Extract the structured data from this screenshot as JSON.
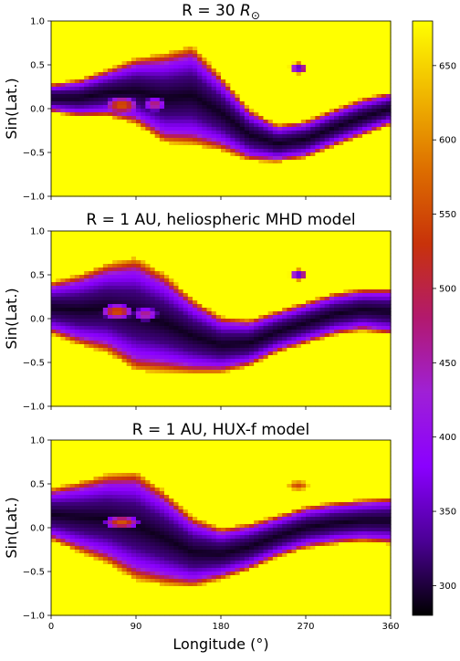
{
  "chart_data": {
    "type": "heatmap",
    "panels": [
      {
        "title_prefix": "R = 30 ",
        "title_symbol": "R",
        "title_subscript": "⊙",
        "ylabel": "Sin(Lat.)",
        "xlim": [
          0,
          360
        ],
        "ylim": [
          -1.0,
          1.0
        ],
        "yticks": [
          "−1.0",
          "−0.5",
          "0.0",
          "0.5",
          "1.0"
        ],
        "yticks_values": [
          -1.0,
          -0.5,
          0.0,
          0.5,
          1.0
        ],
        "show_xticklabels": false,
        "current_sheet": {
          "lon": [
            0,
            30,
            60,
            90,
            120,
            150,
            180,
            210,
            240,
            270,
            300,
            330,
            360
          ],
          "center": [
            0.12,
            0.12,
            0.18,
            0.2,
            0.12,
            0.15,
            -0.05,
            -0.3,
            -0.4,
            -0.35,
            -0.22,
            -0.1,
            0.0
          ],
          "halfwidth": [
            0.12,
            0.16,
            0.2,
            0.28,
            0.38,
            0.42,
            0.32,
            0.22,
            0.16,
            0.16,
            0.16,
            0.16,
            0.14
          ],
          "blobs": [
            {
              "lon": 75,
              "lat": 0.04,
              "rlon": 18,
              "rlat": 0.1,
              "value": 560
            },
            {
              "lon": 110,
              "lat": 0.05,
              "rlon": 12,
              "rlat": 0.08,
              "value": 480
            },
            {
              "lon": 262,
              "lat": 0.46,
              "rlon": 10,
              "rlat": 0.07,
              "value": 330
            }
          ]
        }
      },
      {
        "title": "R = 1 AU, heliospheric MHD model",
        "ylabel": "Sin(Lat.)",
        "xlim": [
          0,
          360
        ],
        "ylim": [
          -1.0,
          1.0
        ],
        "yticks": [
          "−1.0",
          "−0.5",
          "0.0",
          "0.5",
          "1.0"
        ],
        "yticks_values": [
          -1.0,
          -0.5,
          0.0,
          0.5,
          1.0
        ],
        "show_xticklabels": false,
        "current_sheet": {
          "lon": [
            0,
            30,
            60,
            90,
            120,
            150,
            180,
            210,
            240,
            270,
            300,
            330,
            360
          ],
          "center": [
            0.12,
            0.1,
            0.12,
            0.05,
            -0.05,
            -0.2,
            -0.3,
            -0.28,
            -0.15,
            -0.05,
            0.05,
            0.1,
            0.08
          ],
          "halfwidth": [
            0.22,
            0.3,
            0.38,
            0.48,
            0.42,
            0.32,
            0.24,
            0.2,
            0.18,
            0.18,
            0.18,
            0.18,
            0.2
          ],
          "blobs": [
            {
              "lon": 70,
              "lat": 0.08,
              "rlon": 18,
              "rlat": 0.09,
              "value": 560
            },
            {
              "lon": 100,
              "lat": 0.05,
              "rlon": 14,
              "rlat": 0.08,
              "value": 470
            },
            {
              "lon": 262,
              "lat": 0.5,
              "rlon": 10,
              "rlat": 0.07,
              "value": 330
            }
          ]
        }
      },
      {
        "title": "R = 1 AU, HUX-f model",
        "ylabel": "Sin(Lat.)",
        "xlabel": "Longitude (°)",
        "xlim": [
          0,
          360
        ],
        "ylim": [
          -1.0,
          1.0
        ],
        "xticks": [
          "0",
          "90",
          "180",
          "270",
          "360"
        ],
        "xticks_values": [
          0,
          90,
          180,
          270,
          360
        ],
        "yticks": [
          "−1.0",
          "−0.5",
          "0.0",
          "0.5",
          "1.0"
        ],
        "yticks_values": [
          -1.0,
          -0.5,
          0.0,
          0.5,
          1.0
        ],
        "show_xticklabels": true,
        "current_sheet": {
          "lon": [
            0,
            30,
            60,
            90,
            120,
            150,
            180,
            210,
            240,
            270,
            300,
            330,
            360
          ],
          "center": [
            0.15,
            0.12,
            0.1,
            0.02,
            -0.12,
            -0.28,
            -0.3,
            -0.22,
            -0.1,
            0.0,
            0.05,
            0.08,
            0.08
          ],
          "halfwidth": [
            0.22,
            0.3,
            0.38,
            0.46,
            0.4,
            0.3,
            0.22,
            0.2,
            0.18,
            0.18,
            0.18,
            0.18,
            0.2
          ],
          "blobs": [
            {
              "lon": 75,
              "lat": 0.06,
              "rlon": 20,
              "rlat": 0.08,
              "value": 560
            },
            {
              "lon": 262,
              "lat": 0.48,
              "rlon": 12,
              "rlat": 0.06,
              "value": 550
            }
          ]
        }
      }
    ],
    "colorbar": {
      "colormap": "gnuplot",
      "vmin": 280,
      "vmax": 680,
      "ticks": [
        300,
        350,
        400,
        450,
        500,
        550,
        600,
        650
      ],
      "tick_labels": [
        "300",
        "350",
        "400",
        "450",
        "500",
        "550",
        "600",
        "650"
      ],
      "colors": [
        "#000000",
        "#4b0095",
        "#8a00ff",
        "#9f20d6",
        "#b2196e",
        "#c8320a",
        "#dd6e00",
        "#f0b600",
        "#ffff00"
      ]
    }
  }
}
